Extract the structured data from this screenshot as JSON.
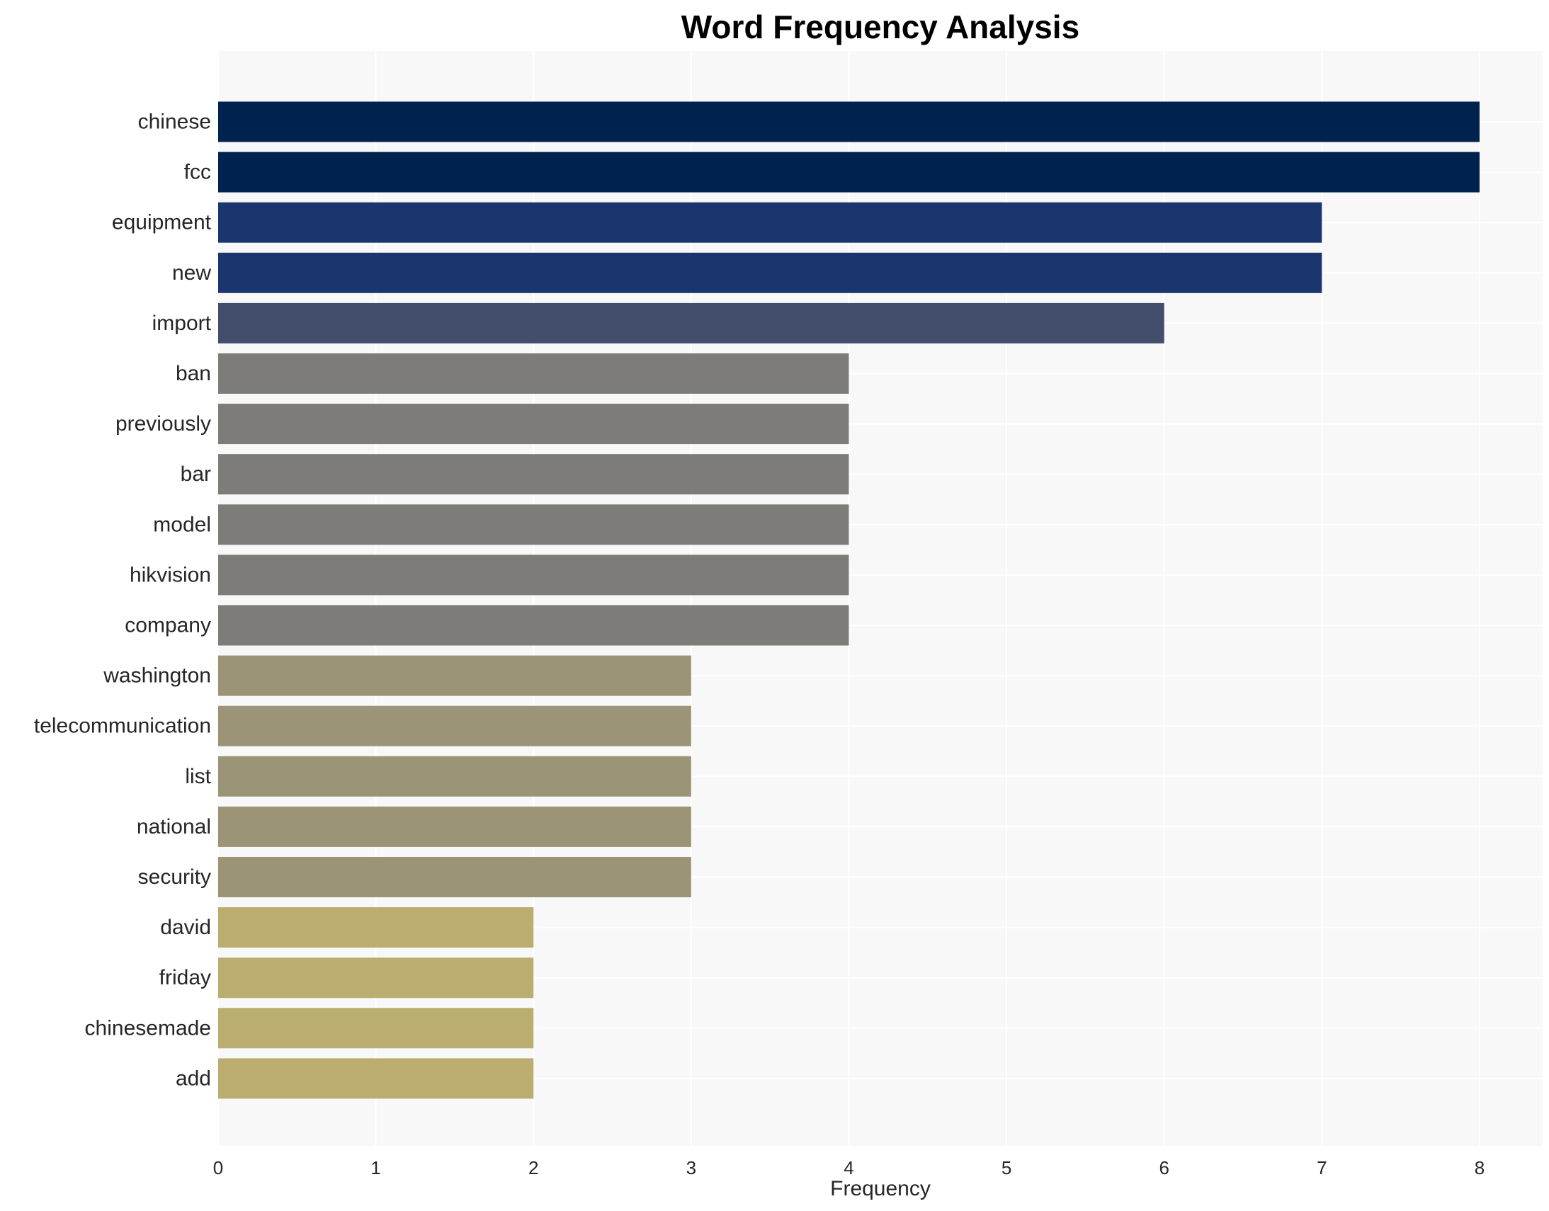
{
  "chart_data": {
    "type": "bar",
    "orientation": "horizontal",
    "title": "Word Frequency Analysis",
    "xlabel": "Frequency",
    "ylabel": "",
    "xlim": [
      0,
      8.4
    ],
    "xticks": [
      0,
      1,
      2,
      3,
      4,
      5,
      6,
      7,
      8
    ],
    "grid": true,
    "categories": [
      "chinese",
      "fcc",
      "equipment",
      "new",
      "import",
      "ban",
      "previously",
      "bar",
      "model",
      "hikvision",
      "company",
      "washington",
      "telecommunication",
      "list",
      "national",
      "security",
      "david",
      "friday",
      "chinesemade",
      "add"
    ],
    "values": [
      8,
      8,
      7,
      7,
      6,
      4,
      4,
      4,
      4,
      4,
      4,
      3,
      3,
      3,
      3,
      3,
      2,
      2,
      2,
      2
    ],
    "colors": [
      "#00224e",
      "#00224e",
      "#1b366f",
      "#1b366f",
      "#434e6c",
      "#7d7c78",
      "#7d7c78",
      "#7d7c78",
      "#7d7c78",
      "#7d7c78",
      "#7d7c78",
      "#9b9477",
      "#9b9477",
      "#9b9477",
      "#9b9477",
      "#9b9477",
      "#baad6f",
      "#baad6f",
      "#baad6f",
      "#baad6f"
    ],
    "background_color": "#f8f8f8",
    "grid_color": "#ffffff"
  }
}
